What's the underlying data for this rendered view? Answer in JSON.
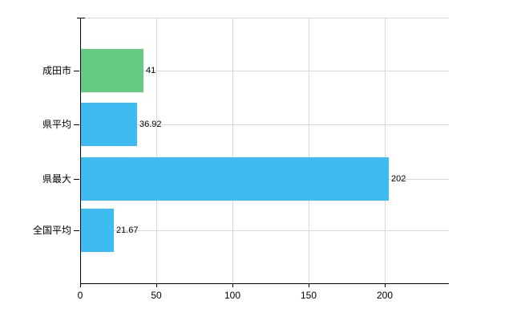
{
  "chart_data": {
    "type": "bar",
    "orientation": "horizontal",
    "title": "",
    "xlabel": "",
    "ylabel": "",
    "categories": [
      "成田市",
      "県平均",
      "県最大",
      "全国平均"
    ],
    "values": [
      41,
      36.92,
      202,
      21.67
    ],
    "value_labels": [
      "41",
      "36.92",
      "202",
      "21.67"
    ],
    "bar_colors": [
      "#64CB85",
      "#3EBCF2",
      "#3EBCF2",
      "#3EBCF2"
    ],
    "x_ticks": [
      0,
      50,
      100,
      150,
      200
    ],
    "x_tick_labels": [
      "0",
      "50",
      "100",
      "150",
      "200"
    ],
    "xlim": [
      0,
      242
    ],
    "grid": true,
    "legend": null,
    "colors": {
      "axis": "#000000",
      "grid": "#d9d9d9",
      "text": "#000000",
      "background": "#ffffff"
    }
  }
}
